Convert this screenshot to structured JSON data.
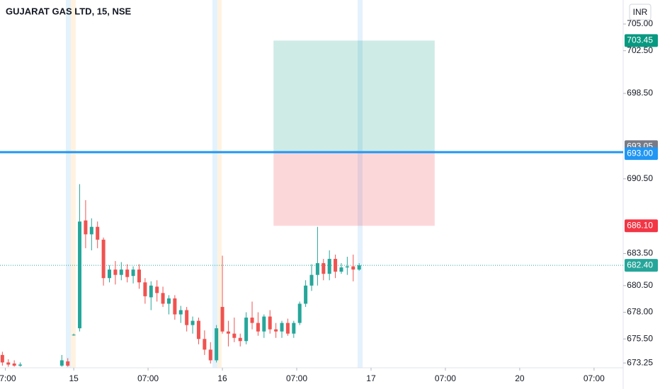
{
  "chart_data": {
    "type": "candlestick",
    "title": "GUJARAT GAS LTD, 15, NSE",
    "currency": "INR",
    "up_color": "#26a69a",
    "down_color": "#ef5350",
    "xlim": [
      -12.4,
      92.4
    ],
    "ylim": [
      672.8,
      707.25
    ],
    "xticks": [
      {
        "value": -11.5,
        "label": "07:00"
      },
      {
        "value": 0,
        "label": "15"
      },
      {
        "value": 12.5,
        "label": "07:00"
      },
      {
        "value": 25,
        "label": "16"
      },
      {
        "value": 37.5,
        "label": "07:00"
      },
      {
        "value": 50,
        "label": "17"
      },
      {
        "value": 62.5,
        "label": "07:00"
      },
      {
        "value": 75,
        "label": "20"
      },
      {
        "value": 87.5,
        "label": "07:00"
      }
    ],
    "yticks": [
      {
        "value": 705,
        "label": "705.00"
      },
      {
        "value": 702.5,
        "label": "702.50"
      },
      {
        "value": 698.5,
        "label": "698.50"
      },
      {
        "value": 690.5,
        "label": "690.50"
      },
      {
        "value": 683.5,
        "label": "683.50"
      },
      {
        "value": 680.5,
        "label": "680.50"
      },
      {
        "value": 678,
        "label": "678.00"
      },
      {
        "value": 675.5,
        "label": "675.50"
      },
      {
        "value": 673.25,
        "label": "673.25"
      }
    ],
    "x": [
      -12,
      -11,
      -10,
      -9,
      -2,
      -1,
      0,
      1,
      2,
      3,
      4,
      5,
      6,
      7,
      8,
      9,
      10,
      11,
      12,
      13,
      14,
      15,
      16,
      17,
      18,
      19,
      20,
      21,
      22,
      23,
      24,
      25,
      26,
      27,
      28,
      29,
      30,
      31,
      32,
      33,
      34,
      35,
      36,
      37,
      38,
      39,
      40,
      41,
      42,
      43,
      44,
      45,
      46,
      47,
      48
    ],
    "open": [
      674.0,
      673.3,
      673.2,
      673.0,
      673.0,
      673.4,
      675.9,
      676.5,
      686.6,
      685.3,
      686.0,
      684.8,
      681.2,
      682.0,
      681.5,
      682.0,
      681.4,
      682.0,
      680.8,
      679.4,
      680.4,
      679.8,
      678.8,
      679.3,
      677.8,
      678.2,
      676.8,
      677.2,
      675.5,
      674.5,
      673.5,
      678.5,
      676.2,
      676.0,
      675.6,
      675.3,
      677.5,
      677.0,
      676.2,
      677.6,
      676.4,
      676.2,
      677.0,
      676.0,
      677.0,
      678.8,
      680.5,
      681.5,
      682.6,
      681.6,
      683.0,
      681.8,
      682.2,
      682.3,
      682.0
    ],
    "high": [
      674.3,
      673.6,
      673.5,
      673.3,
      674.0,
      673.7,
      676.0,
      690.0,
      688.5,
      686.8,
      686.5,
      685.0,
      682.4,
      682.8,
      682.7,
      682.5,
      682.3,
      682.5,
      681.2,
      680.9,
      681.0,
      680.4,
      679.6,
      679.6,
      678.6,
      678.5,
      677.6,
      677.5,
      676.3,
      675.2,
      676.8,
      683.3,
      677.2,
      677.5,
      676.0,
      678.0,
      679.0,
      678.0,
      677.8,
      678.2,
      677.0,
      677.2,
      677.4,
      677.2,
      679.0,
      681.0,
      682.5,
      686.0,
      683.0,
      683.8,
      683.4,
      682.6,
      683.2,
      683.4,
      682.6
    ],
    "low": [
      673.0,
      672.9,
      672.9,
      672.9,
      672.9,
      672.9,
      675.8,
      676.2,
      684.0,
      683.8,
      684.0,
      680.5,
      680.8,
      680.6,
      681.0,
      680.8,
      680.7,
      680.2,
      678.8,
      678.2,
      679.0,
      678.5,
      677.8,
      677.3,
      677.0,
      676.2,
      676.0,
      675.0,
      674.0,
      673.2,
      673.3,
      676.0,
      674.8,
      675.2,
      674.8,
      675.0,
      676.4,
      675.8,
      675.6,
      676.0,
      675.6,
      675.6,
      675.8,
      675.6,
      676.8,
      678.5,
      680.0,
      680.5,
      681.0,
      681.0,
      681.2,
      681.6,
      681.5,
      680.9,
      681.9
    ],
    "close": [
      673.3,
      673.1,
      673.0,
      673.1,
      673.5,
      673.0,
      675.9,
      686.5,
      685.3,
      686.0,
      684.8,
      681.2,
      682.0,
      681.5,
      682.0,
      681.3,
      682.0,
      680.8,
      679.5,
      680.5,
      679.8,
      678.8,
      679.3,
      677.8,
      678.2,
      676.8,
      677.2,
      675.5,
      674.5,
      673.5,
      676.5,
      676.2,
      676.0,
      675.6,
      675.3,
      677.5,
      677.0,
      676.2,
      677.6,
      676.4,
      676.2,
      677.0,
      676.0,
      677.0,
      678.8,
      680.5,
      681.5,
      682.6,
      681.6,
      683.0,
      681.8,
      682.2,
      682.3,
      682.0,
      682.4
    ],
    "position": {
      "x_start": 33.6,
      "x_end": 60.7,
      "target": {
        "value": 703.45,
        "label": "703.45"
      },
      "entry": {
        "value": 693.05,
        "label": "693.05"
      },
      "stop": {
        "value": 686.1,
        "label": "686.10"
      },
      "profit_color": "#089981",
      "loss_color": "#f23645",
      "entry_color": "#787b86"
    },
    "hline": {
      "value": 693,
      "label": "693.00",
      "color": "#2196f3"
    },
    "last_price": {
      "value": 682.4,
      "label": "682.40",
      "color": "#26a69a"
    }
  }
}
